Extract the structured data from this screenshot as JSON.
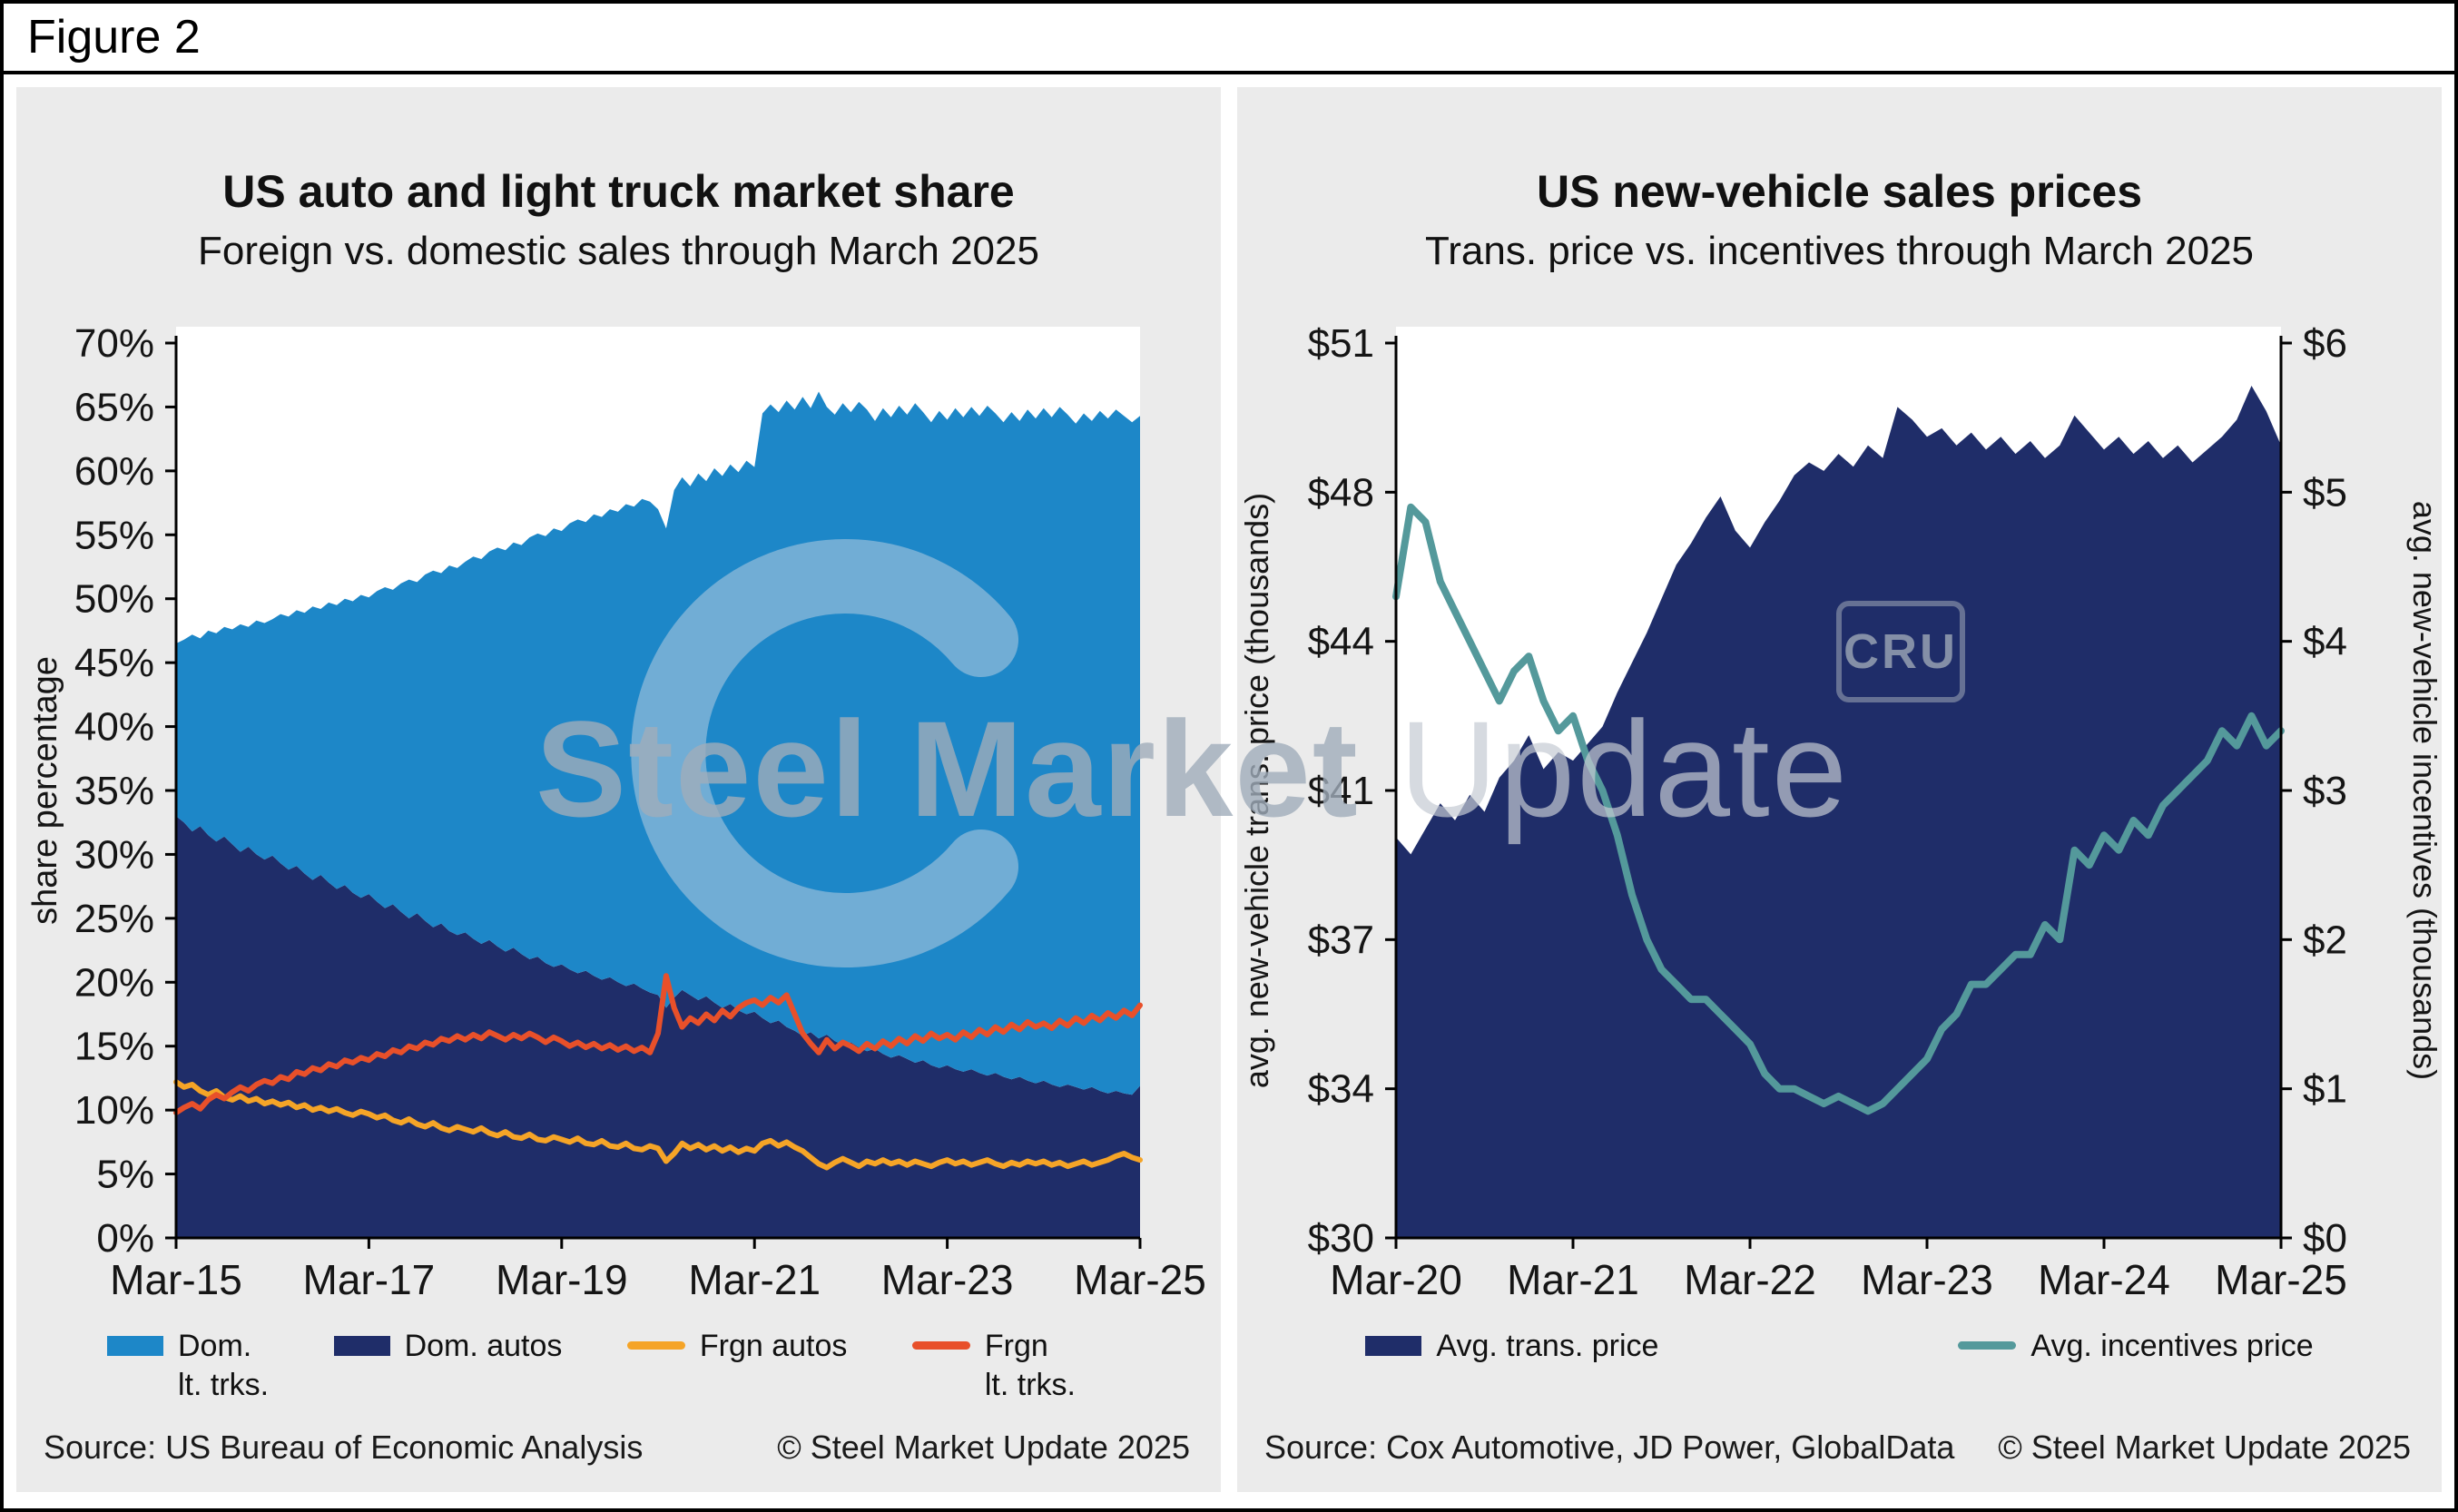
{
  "figure_label": "Figure 2",
  "watermark": {
    "brand_bold": "Steel Market",
    "brand_light": " Update",
    "cru": "CRU"
  },
  "left_panel": {
    "title": "US auto and light truck market share",
    "subtitle": "Foreign vs. domestic sales through March 2025",
    "source": "Source: US Bureau of Economic Analysis",
    "copyright": "© Steel Market Update 2025",
    "legend": [
      {
        "label": "Dom.\nlt. trks.",
        "color": "#1d87c8",
        "type": "area"
      },
      {
        "label": "Dom. autos",
        "color": "#1f2d69",
        "type": "area"
      },
      {
        "label": "Frgn autos",
        "color": "#f5a427",
        "type": "line"
      },
      {
        "label": "Frgn\nlt. trks.",
        "color": "#e8502a",
        "type": "line"
      }
    ]
  },
  "right_panel": {
    "title": "US new-vehicle sales prices",
    "subtitle": "Trans. price vs. incentives through March 2025",
    "source": "Source: Cox Automotive, JD Power, GlobalData",
    "copyright": "© Steel Market Update 2025",
    "legend": [
      {
        "label": "Avg. trans. price",
        "color": "#1f2d69",
        "type": "area"
      },
      {
        "label": "Avg. incentives price",
        "color": "#54999b",
        "type": "line"
      }
    ]
  },
  "chart_data": [
    {
      "type": "area",
      "title": "US auto and light truck market share",
      "subtitle": "Foreign vs. domestic sales through March 2025",
      "ylabel": "share percentage",
      "ylim": [
        0,
        70
      ],
      "y_tick_step": 5,
      "x_interval": "monthly",
      "x_range": [
        "Mar-15",
        "Mar-25"
      ],
      "x_tick_labels": [
        "Mar-15",
        "Mar-17",
        "Mar-19",
        "Mar-21",
        "Mar-23",
        "Mar-25"
      ],
      "grid": false,
      "legend_position": "bottom",
      "series": [
        {
          "name": "Dom. autos",
          "type": "area-stacked",
          "color": "#1f2d69",
          "values": [
            33.0,
            32.5,
            31.8,
            32.2,
            31.5,
            31.0,
            31.4,
            30.8,
            30.2,
            30.6,
            30.0,
            29.6,
            29.9,
            29.3,
            28.8,
            29.1,
            28.5,
            28.0,
            28.4,
            27.8,
            27.3,
            27.6,
            27.0,
            26.6,
            26.9,
            26.3,
            25.8,
            26.1,
            25.5,
            25.0,
            25.4,
            24.8,
            24.3,
            24.6,
            24.0,
            23.7,
            23.9,
            23.4,
            23.0,
            23.3,
            22.8,
            22.4,
            22.7,
            22.2,
            21.8,
            22.0,
            21.5,
            21.2,
            21.4,
            21.0,
            20.7,
            20.9,
            20.5,
            20.2,
            20.4,
            20.0,
            19.7,
            19.9,
            19.5,
            19.2,
            19.0,
            18.0,
            18.8,
            19.4,
            19.0,
            18.6,
            18.9,
            18.4,
            18.0,
            18.3,
            17.8,
            17.5,
            17.7,
            17.2,
            16.8,
            17.0,
            16.5,
            16.2,
            15.8,
            16.1,
            15.6,
            15.9,
            15.4,
            15.1,
            15.3,
            14.9,
            14.6,
            14.8,
            14.4,
            14.1,
            14.3,
            14.0,
            13.7,
            13.9,
            13.5,
            13.3,
            13.5,
            13.2,
            13.0,
            13.2,
            12.9,
            12.7,
            12.9,
            12.6,
            12.4,
            12.6,
            12.3,
            12.1,
            12.3,
            12.0,
            11.8,
            12.0,
            11.8,
            11.6,
            11.8,
            11.5,
            11.3,
            11.5,
            11.3,
            11.2,
            11.9
          ]
        },
        {
          "name": "Dom. lt. trks.",
          "type": "area-stacked",
          "color": "#1d87c8",
          "values": [
            13.5,
            14.3,
            15.4,
            14.7,
            16.0,
            16.3,
            16.4,
            16.8,
            17.8,
            17.2,
            18.3,
            18.5,
            18.5,
            19.5,
            19.8,
            20.0,
            20.4,
            21.4,
            20.8,
            21.9,
            22.2,
            22.4,
            22.8,
            23.7,
            23.2,
            24.3,
            25.1,
            24.6,
            25.7,
            26.5,
            25.9,
            27.1,
            27.9,
            27.4,
            28.6,
            28.7,
            29.0,
            29.9,
            30.1,
            30.4,
            31.2,
            31.4,
            31.7,
            32.0,
            33.0,
            33.1,
            33.4,
            34.3,
            33.9,
            34.9,
            35.5,
            35.1,
            36.1,
            36.2,
            36.6,
            36.8,
            37.7,
            37.3,
            38.3,
            38.4,
            38.0,
            37.5,
            39.7,
            40.1,
            39.8,
            41.2,
            40.3,
            41.8,
            41.6,
            42.2,
            42.1,
            43.3,
            42.6,
            47.3,
            48.4,
            47.6,
            49.0,
            48.6,
            50.0,
            48.8,
            50.6,
            49.1,
            49.0,
            50.2,
            49.3,
            50.5,
            50.2,
            49.1,
            50.5,
            50.1,
            50.8,
            50.4,
            51.6,
            50.7,
            50.3,
            51.4,
            50.5,
            51.7,
            51.2,
            51.8,
            51.4,
            52.4,
            51.6,
            51.2,
            52.2,
            51.3,
            52.5,
            52.0,
            52.6,
            52.2,
            53.2,
            52.4,
            51.9,
            52.9,
            52.1,
            53.2,
            52.8,
            53.3,
            53.0,
            52.6,
            52.4
          ]
        },
        {
          "name": "Frgn autos",
          "type": "line",
          "color": "#f5a427",
          "values": [
            12.2,
            11.8,
            12.0,
            11.5,
            11.2,
            11.5,
            11.0,
            10.8,
            11.1,
            10.7,
            10.9,
            10.5,
            10.7,
            10.4,
            10.6,
            10.2,
            10.4,
            10.0,
            10.2,
            9.9,
            10.1,
            9.8,
            9.6,
            9.9,
            9.7,
            9.4,
            9.6,
            9.2,
            9.0,
            9.3,
            8.9,
            8.7,
            9.0,
            8.6,
            8.4,
            8.7,
            8.5,
            8.3,
            8.6,
            8.2,
            8.0,
            8.3,
            7.9,
            7.8,
            8.1,
            7.7,
            7.6,
            7.9,
            7.7,
            7.5,
            7.8,
            7.4,
            7.3,
            7.6,
            7.2,
            7.1,
            7.4,
            7.0,
            6.9,
            7.2,
            7.0,
            6.0,
            6.6,
            7.4,
            7.0,
            7.3,
            6.9,
            7.2,
            6.8,
            7.1,
            6.7,
            7.0,
            6.8,
            7.4,
            7.6,
            7.2,
            7.5,
            7.1,
            6.8,
            6.3,
            5.8,
            5.5,
            5.9,
            6.2,
            5.9,
            5.6,
            6.0,
            5.8,
            6.1,
            5.8,
            6.0,
            5.7,
            6.0,
            5.8,
            5.6,
            5.9,
            6.1,
            5.8,
            6.0,
            5.7,
            5.9,
            6.1,
            5.8,
            5.6,
            5.9,
            5.7,
            6.0,
            5.8,
            6.0,
            5.7,
            5.9,
            5.6,
            5.8,
            6.0,
            5.7,
            5.9,
            6.1,
            6.4,
            6.6,
            6.3,
            6.1
          ]
        },
        {
          "name": "Frgn lt. trks.",
          "type": "line",
          "color": "#e8502a",
          "values": [
            9.8,
            10.2,
            10.5,
            10.1,
            10.8,
            11.2,
            10.9,
            11.4,
            11.8,
            11.5,
            12.0,
            12.3,
            12.1,
            12.6,
            12.4,
            13.0,
            12.8,
            13.3,
            13.1,
            13.6,
            13.4,
            13.9,
            13.7,
            14.1,
            13.9,
            14.4,
            14.2,
            14.7,
            14.5,
            15.0,
            14.8,
            15.3,
            15.1,
            15.6,
            15.4,
            15.8,
            15.5,
            15.9,
            15.6,
            16.1,
            15.8,
            15.5,
            15.9,
            15.6,
            16.0,
            15.7,
            15.3,
            15.7,
            15.4,
            15.0,
            15.3,
            14.9,
            15.2,
            14.8,
            15.1,
            14.7,
            15.0,
            14.6,
            14.9,
            14.5,
            16.0,
            20.5,
            18.0,
            16.5,
            17.2,
            16.8,
            17.5,
            17.0,
            17.8,
            17.3,
            18.0,
            18.4,
            18.6,
            18.2,
            18.8,
            18.4,
            19.0,
            17.5,
            16.0,
            15.2,
            14.5,
            15.5,
            14.8,
            15.3,
            15.0,
            14.6,
            15.2,
            14.8,
            15.4,
            15.0,
            15.6,
            15.2,
            15.8,
            15.4,
            16.0,
            15.6,
            15.9,
            15.5,
            16.1,
            15.7,
            16.3,
            15.9,
            16.5,
            16.1,
            16.7,
            16.3,
            16.9,
            16.5,
            16.8,
            16.4,
            17.0,
            16.6,
            17.2,
            16.8,
            17.4,
            17.0,
            17.6,
            17.2,
            17.8,
            17.4,
            18.2
          ]
        }
      ]
    },
    {
      "type": "area",
      "title": "US new-vehicle sales prices",
      "subtitle": "Trans. price vs. incentives through March 2025",
      "ylabel_left": "avg. new-vehicle trans. price (thousands)",
      "ylabel_right": "avg. new-vehicle incentives (thousands)",
      "y_left": {
        "lim": [
          30,
          51
        ],
        "tick_values": [
          30,
          33.5,
          37,
          40.5,
          44,
          47.5,
          51
        ],
        "tick_labels": [
          "$30",
          "$34",
          "$37",
          "$41",
          "$44",
          "$48",
          "$51"
        ]
      },
      "y_right": {
        "lim": [
          0,
          6
        ],
        "tick_values": [
          0,
          1,
          2,
          3,
          4,
          5,
          6
        ],
        "tick_labels": [
          "$0",
          "$1",
          "$2",
          "$3",
          "$4",
          "$5",
          "$6"
        ]
      },
      "x_interval": "monthly",
      "x_range": [
        "Mar-20",
        "Mar-25"
      ],
      "x_tick_labels": [
        "Mar-20",
        "Mar-21",
        "Mar-22",
        "Mar-23",
        "Mar-24",
        "Mar-25"
      ],
      "grid": false,
      "legend_position": "bottom",
      "series": [
        {
          "name": "Avg. trans. price",
          "type": "area",
          "axis": "left",
          "color": "#1f2d69",
          "values": [
            39.4,
            39.0,
            39.6,
            40.2,
            39.8,
            40.4,
            40.0,
            40.8,
            41.2,
            41.8,
            41.0,
            41.4,
            41.2,
            41.6,
            42.0,
            42.8,
            43.5,
            44.2,
            45.0,
            45.8,
            46.3,
            46.9,
            47.4,
            46.6,
            46.2,
            46.8,
            47.3,
            47.9,
            48.2,
            48.0,
            48.4,
            48.1,
            48.6,
            48.3,
            49.5,
            49.2,
            48.8,
            49.0,
            48.6,
            48.9,
            48.5,
            48.8,
            48.4,
            48.7,
            48.3,
            48.6,
            49.3,
            48.9,
            48.5,
            48.8,
            48.4,
            48.7,
            48.3,
            48.6,
            48.2,
            48.5,
            48.8,
            49.2,
            50.0,
            49.4,
            48.6
          ]
        },
        {
          "name": "Avg. incentives price",
          "type": "line",
          "axis": "right",
          "color": "#54999b",
          "values": [
            4.3,
            4.9,
            4.8,
            4.4,
            4.2,
            4.0,
            3.8,
            3.6,
            3.8,
            3.9,
            3.6,
            3.4,
            3.5,
            3.2,
            3.0,
            2.7,
            2.3,
            2.0,
            1.8,
            1.7,
            1.6,
            1.6,
            1.5,
            1.4,
            1.3,
            1.1,
            1.0,
            1.0,
            0.95,
            0.9,
            0.95,
            0.9,
            0.85,
            0.9,
            1.0,
            1.1,
            1.2,
            1.4,
            1.5,
            1.7,
            1.7,
            1.8,
            1.9,
            1.9,
            2.1,
            2.0,
            2.6,
            2.5,
            2.7,
            2.6,
            2.8,
            2.7,
            2.9,
            3.0,
            3.1,
            3.2,
            3.4,
            3.3,
            3.5,
            3.3,
            3.4
          ]
        }
      ]
    }
  ]
}
